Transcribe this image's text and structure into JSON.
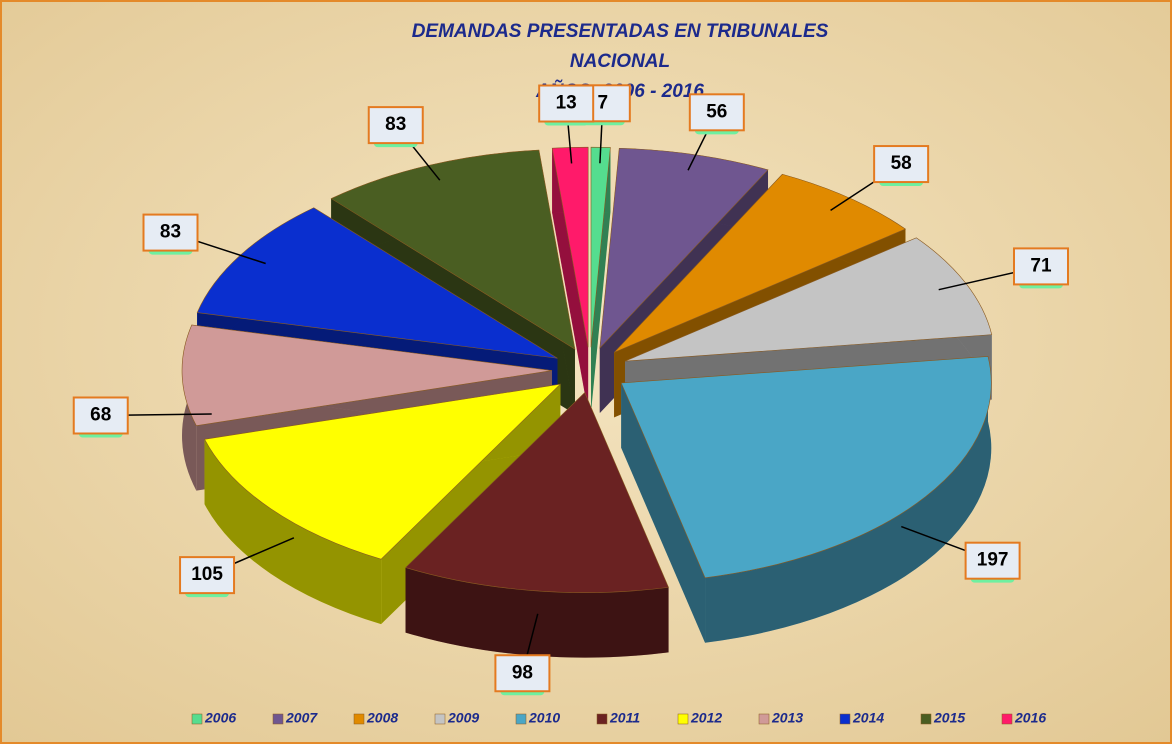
{
  "chart_data": {
    "type": "pie",
    "title_lines": [
      "DEMANDAS PRESENTADAS  EN  TRIBUNALES",
      "NACIONAL",
      "AÑOS: 2006 - 2016"
    ],
    "categories": [
      "2006",
      "2007",
      "2008",
      "2009",
      "2010",
      "2011",
      "2012",
      "2013",
      "2014",
      "2015",
      "2016"
    ],
    "values": [
      7,
      56,
      58,
      71,
      197,
      98,
      105,
      68,
      83,
      83,
      13
    ],
    "colors": [
      "#55dd8f",
      "#6f5690",
      "#e08a00",
      "#c4c4c4",
      "#4aa6c6",
      "#6a2222",
      "#ffff00",
      "#d09a98",
      "#0a2fcf",
      "#4a5e22",
      "#ff1a6a"
    ],
    "legend": "bottom"
  }
}
